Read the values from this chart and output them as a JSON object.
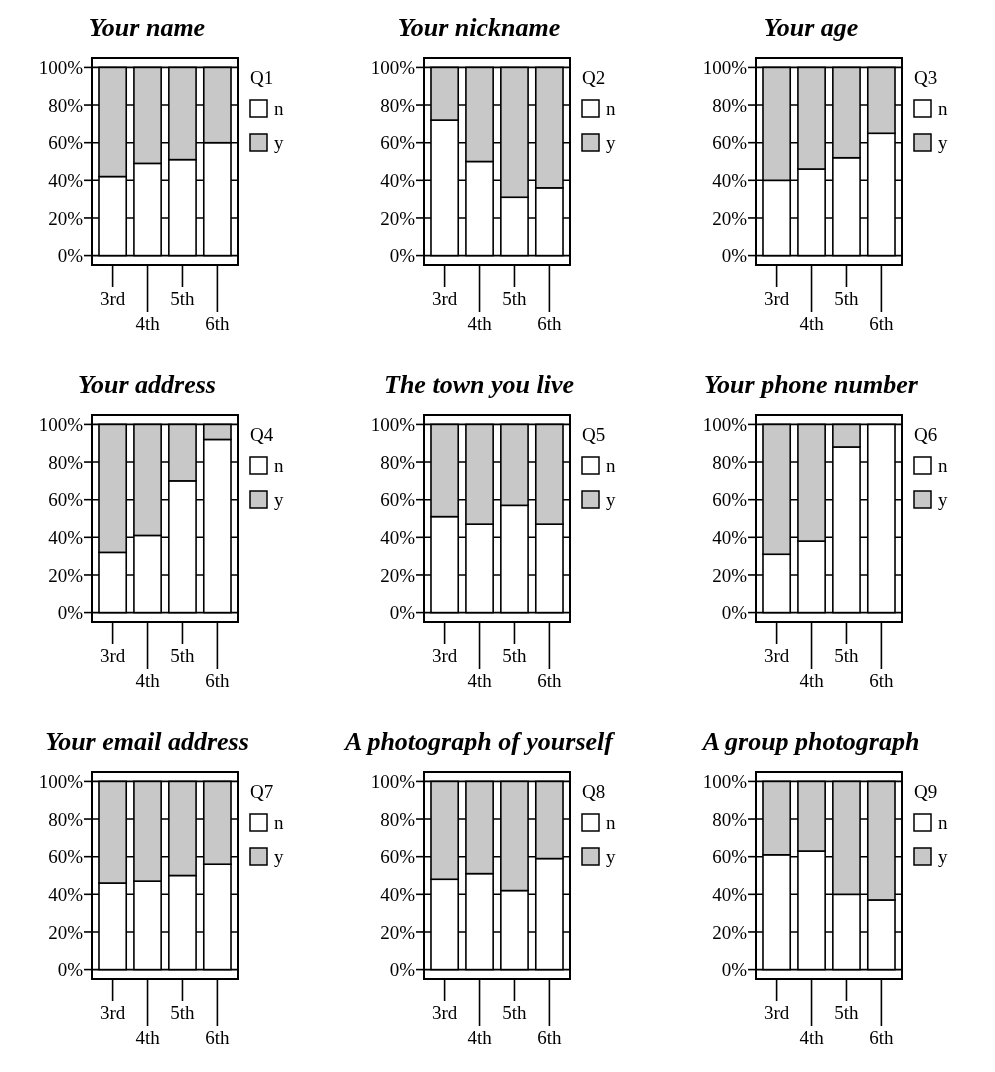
{
  "chart_data": [
    {
      "type": "bar",
      "stacked": true,
      "title": "Your name",
      "categories": [
        "3rd",
        "4th",
        "5th",
        "6th"
      ],
      "legend_title": "Q1",
      "legend": "right",
      "grid": "y",
      "ylim": [
        -5,
        105
      ],
      "yticks": [
        {
          "value": 0,
          "label": "0%"
        },
        {
          "value": 20,
          "label": "20%"
        },
        {
          "value": 40,
          "label": "40%"
        },
        {
          "value": 60,
          "label": "60%"
        },
        {
          "value": 80,
          "label": "80%"
        },
        {
          "value": 100,
          "label": "100%"
        }
      ],
      "series": [
        {
          "name": "n",
          "color": "#ffffff",
          "values": [
            42,
            49,
            51,
            60
          ]
        },
        {
          "name": "y",
          "color": "#c8c8c8",
          "values": [
            58,
            51,
            49,
            40
          ]
        }
      ]
    },
    {
      "type": "bar",
      "stacked": true,
      "title": "Your nickname",
      "categories": [
        "3rd",
        "4th",
        "5th",
        "6th"
      ],
      "legend_title": "Q2",
      "legend": "right",
      "grid": "y",
      "ylim": [
        -5,
        105
      ],
      "yticks": [
        {
          "value": 0,
          "label": "0%"
        },
        {
          "value": 20,
          "label": "20%"
        },
        {
          "value": 40,
          "label": "40%"
        },
        {
          "value": 60,
          "label": "60%"
        },
        {
          "value": 80,
          "label": "80%"
        },
        {
          "value": 100,
          "label": "100%"
        }
      ],
      "series": [
        {
          "name": "n",
          "color": "#ffffff",
          "values": [
            72,
            50,
            31,
            36
          ]
        },
        {
          "name": "y",
          "color": "#c8c8c8",
          "values": [
            28,
            50,
            69,
            64
          ]
        }
      ]
    },
    {
      "type": "bar",
      "stacked": true,
      "title": "Your age",
      "categories": [
        "3rd",
        "4th",
        "5th",
        "6th"
      ],
      "legend_title": "Q3",
      "legend": "right",
      "grid": "y",
      "ylim": [
        -5,
        105
      ],
      "yticks": [
        {
          "value": 0,
          "label": "0%"
        },
        {
          "value": 20,
          "label": "20%"
        },
        {
          "value": 40,
          "label": "40%"
        },
        {
          "value": 60,
          "label": "60%"
        },
        {
          "value": 80,
          "label": "80%"
        },
        {
          "value": 100,
          "label": "100%"
        }
      ],
      "series": [
        {
          "name": "n",
          "color": "#ffffff",
          "values": [
            40,
            46,
            52,
            65
          ]
        },
        {
          "name": "y",
          "color": "#c8c8c8",
          "values": [
            60,
            54,
            48,
            35
          ]
        }
      ]
    },
    {
      "type": "bar",
      "stacked": true,
      "title": "Your address",
      "categories": [
        "3rd",
        "4th",
        "5th",
        "6th"
      ],
      "legend_title": "Q4",
      "legend": "right",
      "grid": "y",
      "ylim": [
        -5,
        105
      ],
      "yticks": [
        {
          "value": 0,
          "label": "0%"
        },
        {
          "value": 20,
          "label": "20%"
        },
        {
          "value": 40,
          "label": "40%"
        },
        {
          "value": 60,
          "label": "60%"
        },
        {
          "value": 80,
          "label": "80%"
        },
        {
          "value": 100,
          "label": "100%"
        }
      ],
      "series": [
        {
          "name": "n",
          "color": "#ffffff",
          "values": [
            32,
            41,
            70,
            92
          ]
        },
        {
          "name": "y",
          "color": "#c8c8c8",
          "values": [
            68,
            59,
            30,
            8
          ]
        }
      ]
    },
    {
      "type": "bar",
      "stacked": true,
      "title": "The town you live",
      "categories": [
        "3rd",
        "4th",
        "5th",
        "6th"
      ],
      "legend_title": "Q5",
      "legend": "right",
      "grid": "y",
      "ylim": [
        -5,
        105
      ],
      "yticks": [
        {
          "value": 0,
          "label": "0%"
        },
        {
          "value": 20,
          "label": "20%"
        },
        {
          "value": 40,
          "label": "40%"
        },
        {
          "value": 60,
          "label": "60%"
        },
        {
          "value": 80,
          "label": "80%"
        },
        {
          "value": 100,
          "label": "100%"
        }
      ],
      "series": [
        {
          "name": "n",
          "color": "#ffffff",
          "values": [
            51,
            47,
            57,
            47
          ]
        },
        {
          "name": "y",
          "color": "#c8c8c8",
          "values": [
            49,
            53,
            43,
            53
          ]
        }
      ]
    },
    {
      "type": "bar",
      "stacked": true,
      "title": "Your phone number",
      "categories": [
        "3rd",
        "4th",
        "5th",
        "6th"
      ],
      "legend_title": "Q6",
      "legend": "right",
      "grid": "y",
      "ylim": [
        -5,
        105
      ],
      "yticks": [
        {
          "value": 0,
          "label": "0%"
        },
        {
          "value": 20,
          "label": "20%"
        },
        {
          "value": 40,
          "label": "40%"
        },
        {
          "value": 60,
          "label": "60%"
        },
        {
          "value": 80,
          "label": "80%"
        },
        {
          "value": 100,
          "label": "100%"
        }
      ],
      "series": [
        {
          "name": "n",
          "color": "#ffffff",
          "values": [
            31,
            38,
            88,
            100
          ]
        },
        {
          "name": "y",
          "color": "#c8c8c8",
          "values": [
            69,
            62,
            12,
            0
          ]
        }
      ]
    },
    {
      "type": "bar",
      "stacked": true,
      "title": "Your email address",
      "categories": [
        "3rd",
        "4th",
        "5th",
        "6th"
      ],
      "legend_title": "Q7",
      "legend": "right",
      "grid": "y",
      "ylim": [
        -5,
        105
      ],
      "yticks": [
        {
          "value": 0,
          "label": "0%"
        },
        {
          "value": 20,
          "label": "20%"
        },
        {
          "value": 40,
          "label": "40%"
        },
        {
          "value": 60,
          "label": "60%"
        },
        {
          "value": 80,
          "label": "80%"
        },
        {
          "value": 100,
          "label": "100%"
        }
      ],
      "series": [
        {
          "name": "n",
          "color": "#ffffff",
          "values": [
            46,
            47,
            50,
            56
          ]
        },
        {
          "name": "y",
          "color": "#c8c8c8",
          "values": [
            54,
            53,
            50,
            44
          ]
        }
      ]
    },
    {
      "type": "bar",
      "stacked": true,
      "title": "A photograph of yourself",
      "categories": [
        "3rd",
        "4th",
        "5th",
        "6th"
      ],
      "legend_title": "Q8",
      "legend": "right",
      "grid": "y",
      "ylim": [
        -5,
        105
      ],
      "yticks": [
        {
          "value": 0,
          "label": "0%"
        },
        {
          "value": 20,
          "label": "20%"
        },
        {
          "value": 40,
          "label": "40%"
        },
        {
          "value": 60,
          "label": "60%"
        },
        {
          "value": 80,
          "label": "80%"
        },
        {
          "value": 100,
          "label": "100%"
        }
      ],
      "series": [
        {
          "name": "n",
          "color": "#ffffff",
          "values": [
            48,
            51,
            42,
            59
          ]
        },
        {
          "name": "y",
          "color": "#c8c8c8",
          "values": [
            52,
            49,
            58,
            41
          ]
        }
      ]
    },
    {
      "type": "bar",
      "stacked": true,
      "title": "A group photograph",
      "categories": [
        "3rd",
        "4th",
        "5th",
        "6th"
      ],
      "legend_title": "Q9",
      "legend": "right",
      "grid": "y",
      "ylim": [
        -5,
        105
      ],
      "yticks": [
        {
          "value": 0,
          "label": "0%"
        },
        {
          "value": 20,
          "label": "20%"
        },
        {
          "value": 40,
          "label": "40%"
        },
        {
          "value": 60,
          "label": "60%"
        },
        {
          "value": 80,
          "label": "80%"
        },
        {
          "value": 100,
          "label": "100%"
        }
      ],
      "series": [
        {
          "name": "n",
          "color": "#ffffff",
          "values": [
            61,
            63,
            40,
            37
          ]
        },
        {
          "name": "y",
          "color": "#c8c8c8",
          "values": [
            39,
            37,
            60,
            63
          ]
        }
      ]
    }
  ]
}
